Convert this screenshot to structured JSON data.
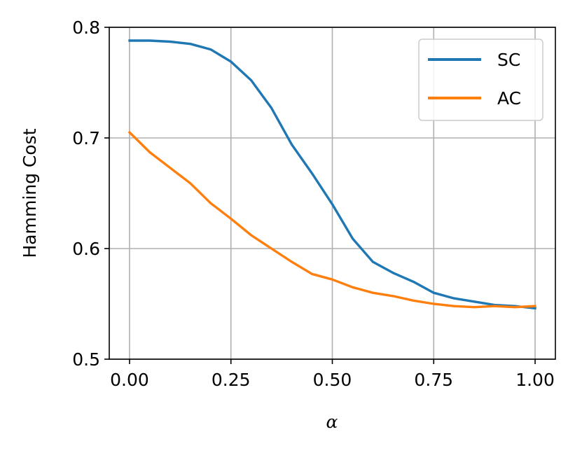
{
  "chart_data": {
    "type": "line",
    "title": "",
    "xlabel": "α",
    "ylabel": "Hamming Cost",
    "xlim": [
      -0.05,
      1.05
    ],
    "ylim": [
      0.5,
      0.8
    ],
    "xticks": [
      0.0,
      0.25,
      0.5,
      0.75,
      1.0
    ],
    "xtick_labels": [
      "0.00",
      "0.25",
      "0.50",
      "0.75",
      "1.00"
    ],
    "yticks": [
      0.5,
      0.6,
      0.7,
      0.8
    ],
    "ytick_labels": [
      "0.5",
      "0.6",
      "0.7",
      "0.8"
    ],
    "grid": true,
    "legend_position": "top-right",
    "series": [
      {
        "name": "SC",
        "color": "#1f77b4",
        "x": [
          0.0,
          0.05,
          0.1,
          0.15,
          0.2,
          0.25,
          0.3,
          0.35,
          0.4,
          0.45,
          0.5,
          0.55,
          0.6,
          0.65,
          0.7,
          0.75,
          0.8,
          0.85,
          0.9,
          0.95,
          1.0
        ],
        "y": [
          0.788,
          0.788,
          0.787,
          0.785,
          0.78,
          0.769,
          0.752,
          0.727,
          0.694,
          0.668,
          0.64,
          0.609,
          0.588,
          0.578,
          0.57,
          0.56,
          0.555,
          0.552,
          0.549,
          0.548,
          0.546
        ]
      },
      {
        "name": "AC",
        "color": "#ff7f0e",
        "x": [
          0.0,
          0.05,
          0.1,
          0.15,
          0.2,
          0.25,
          0.3,
          0.35,
          0.4,
          0.45,
          0.5,
          0.55,
          0.6,
          0.65,
          0.7,
          0.75,
          0.8,
          0.85,
          0.9,
          0.95,
          1.0
        ],
        "y": [
          0.705,
          0.687,
          0.673,
          0.659,
          0.641,
          0.627,
          0.612,
          0.6,
          0.588,
          0.577,
          0.572,
          0.565,
          0.56,
          0.557,
          0.553,
          0.55,
          0.548,
          0.547,
          0.548,
          0.547,
          0.548
        ]
      }
    ]
  }
}
